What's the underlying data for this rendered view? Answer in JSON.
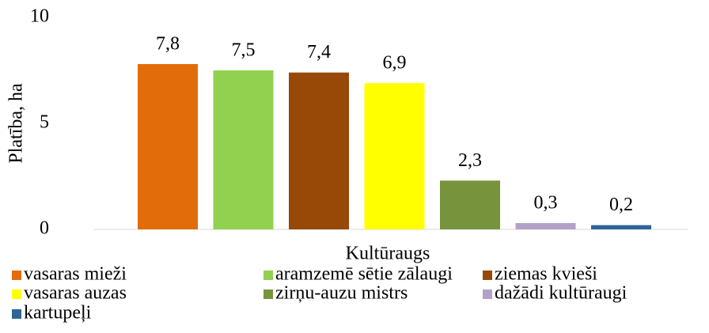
{
  "chart_data": {
    "type": "bar",
    "y_label": "Platība, ha",
    "x_label": "Kultūraugs",
    "ylim": [
      0,
      10
    ],
    "yticks": [
      0,
      5,
      10
    ],
    "grid": false,
    "legend": "bottom",
    "series": [
      {
        "name": "vasaras mieži",
        "color": "#e36c0a",
        "values": [
          7.8
        ],
        "value_labels": [
          "7,8"
        ]
      },
      {
        "name": "aramzemē sētie zālaugi",
        "color": "#92d050",
        "values": [
          7.5
        ],
        "value_labels": [
          "7,5"
        ]
      },
      {
        "name": "ziemas kvieši",
        "color": "#984807",
        "values": [
          7.4
        ],
        "value_labels": [
          "7,4"
        ]
      },
      {
        "name": "vasaras auzas",
        "color": "#ffff00",
        "values": [
          6.9
        ],
        "value_labels": [
          "6,9"
        ]
      },
      {
        "name": "zirņu-auzu mistrs",
        "color": "#77933c",
        "values": [
          2.3
        ],
        "value_labels": [
          "2,3"
        ]
      },
      {
        "name": "dažādi kultūraugi",
        "color": "#b3a2c7",
        "values": [
          0.3
        ],
        "value_labels": [
          "0,3"
        ]
      },
      {
        "name": "kartupeļi",
        "color": "#2e6596",
        "values": [
          0.2
        ],
        "value_labels": [
          "0,2"
        ]
      }
    ]
  }
}
